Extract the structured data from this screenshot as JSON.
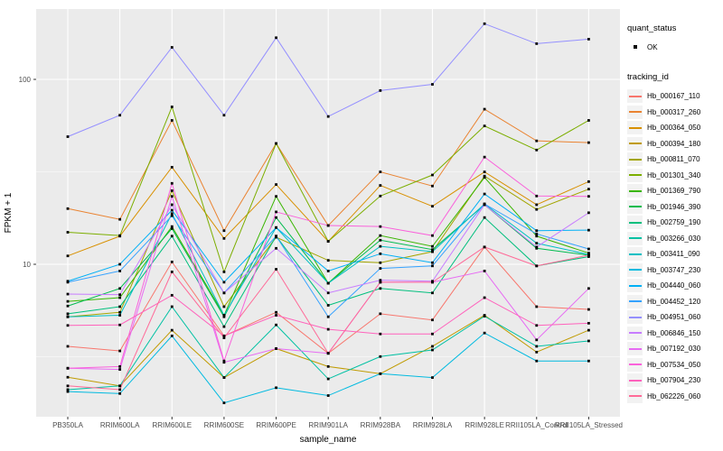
{
  "axes": {
    "y_label": "FPKM + 1",
    "x_label": "sample_name"
  },
  "legend": {
    "quant_title": "quant_status",
    "quant_ok_label": "OK",
    "tracking_title": "tracking_id"
  },
  "chart_data": {
    "type": "line",
    "title": "",
    "xlabel": "sample_name",
    "ylabel": "FPKM + 1",
    "y_scale": "log10",
    "ylim": [
      1.5,
      240
    ],
    "y_major_ticks": [
      100,
      10
    ],
    "y_minor_ticks": [
      31.62,
      3.162
    ],
    "grid": true,
    "legend_position": "right",
    "panel_bg": "#EBEBEB",
    "grid_color": "#FFFFFF",
    "point_color": "#000000",
    "quant_status": "OK",
    "categories": [
      "PB350LA",
      "RRIM600LA",
      "RRIM600LE",
      "RRIM600SE",
      "RRIM600PE",
      "RRIM901LA",
      "RRIM928BA",
      "RRIM928LA",
      "RRIM928LE",
      "RRII105LA_Control",
      "RRII105LA_Stressed"
    ],
    "series": [
      {
        "name": "Hb_000167_110",
        "color": "#F8766D",
        "values": [
          3.6,
          3.4,
          10.3,
          4.1,
          5.5,
          3.3,
          5.4,
          5.0,
          12.4,
          5.9,
          5.7
        ]
      },
      {
        "name": "Hb_000317_260",
        "color": "#EA8331",
        "values": [
          20,
          17.5,
          60,
          15.2,
          45,
          16.2,
          31.6,
          26.5,
          69,
          46.5,
          45.5
        ]
      },
      {
        "name": "Hb_000364_050",
        "color": "#D89000",
        "values": [
          11.1,
          14.2,
          33.5,
          13.8,
          27,
          13.3,
          26.7,
          20.6,
          31.6,
          21,
          28
        ]
      },
      {
        "name": "Hb_000394_180",
        "color": "#C09B00",
        "values": [
          2.45,
          2.2,
          4.4,
          2.44,
          3.5,
          2.8,
          2.56,
          3.6,
          5.3,
          3.35,
          4.4
        ]
      },
      {
        "name": "Hb_000811_070",
        "color": "#A3A500",
        "values": [
          5.2,
          5.5,
          25,
          5.9,
          14,
          10.5,
          10.2,
          11.7,
          30,
          19.8,
          25.5
        ]
      },
      {
        "name": "Hb_001301_340",
        "color": "#7CAE00",
        "values": [
          14.9,
          14.3,
          71,
          9.1,
          45,
          13.3,
          23.4,
          30.4,
          56,
          41.5,
          60
        ]
      },
      {
        "name": "Hb_001369_790",
        "color": "#39B600",
        "values": [
          6.3,
          6.6,
          16,
          5.3,
          23.3,
          7.9,
          14.3,
          12.5,
          29.5,
          14.2,
          11.5
        ]
      },
      {
        "name": "Hb_001946_390",
        "color": "#00BB4E",
        "values": [
          5.95,
          7.4,
          15.6,
          5.2,
          17.9,
          7.9,
          13.5,
          12.0,
          21,
          12.2,
          11.2
        ]
      },
      {
        "name": "Hb_002759_190",
        "color": "#00BF7D",
        "values": [
          5.4,
          5.9,
          14.2,
          4.6,
          14.2,
          6.0,
          7.4,
          7.0,
          17.9,
          9.8,
          11.0
        ]
      },
      {
        "name": "Hb_003266_030",
        "color": "#00C1A3",
        "values": [
          2.1,
          2.2,
          5.9,
          2.44,
          4.7,
          2.4,
          3.17,
          3.44,
          5.24,
          3.6,
          3.85
        ]
      },
      {
        "name": "Hb_003411_090",
        "color": "#00BFC4",
        "values": [
          5.2,
          5.3,
          18.8,
          5.3,
          15.8,
          7.9,
          12.5,
          11.7,
          21.2,
          13,
          11.3
        ]
      },
      {
        "name": "Hb_003747_230",
        "color": "#00BAE0",
        "values": [
          2.05,
          2.0,
          4.1,
          1.78,
          2.15,
          1.95,
          2.56,
          2.44,
          4.25,
          3.0,
          3.0
        ]
      },
      {
        "name": "Hb_004440_060",
        "color": "#00B0F6",
        "values": [
          8.1,
          10.0,
          19.6,
          8.0,
          15.8,
          9.2,
          11.4,
          10.2,
          24,
          15.2,
          15.3
        ]
      },
      {
        "name": "Hb_004452_120",
        "color": "#35A2FF",
        "values": [
          8.0,
          9.2,
          18.3,
          7.0,
          14.2,
          5.2,
          9.5,
          9.8,
          21.2,
          14.6,
          12.1
        ]
      },
      {
        "name": "Hb_004951_060",
        "color": "#9590FF",
        "values": [
          49,
          64,
          149,
          64,
          168,
          63,
          87,
          94,
          200,
          156,
          165
        ]
      },
      {
        "name": "Hb_006846_150",
        "color": "#C77CFF",
        "values": [
          6.9,
          6.85,
          21,
          7.0,
          12.2,
          7.0,
          8.2,
          8.1,
          21,
          12.4,
          19.0
        ]
      },
      {
        "name": "Hb_007192_030",
        "color": "#E76BF3",
        "values": [
          2.74,
          2.7,
          23.3,
          2.95,
          3.5,
          3.3,
          8.0,
          8.0,
          9.2,
          3.9,
          7.4
        ]
      },
      {
        "name": "Hb_007534_050",
        "color": "#FA62DB",
        "values": [
          2.74,
          2.8,
          27.4,
          3.0,
          19.2,
          16.2,
          16.0,
          14.3,
          38,
          23.4,
          23.3
        ]
      },
      {
        "name": "Hb_007904_230",
        "color": "#FF62BC",
        "values": [
          4.67,
          4.7,
          6.8,
          4.1,
          5.3,
          4.45,
          4.2,
          4.2,
          6.6,
          4.67,
          4.8
        ]
      },
      {
        "name": "Hb_062226_060",
        "color": "#FF6A98",
        "values": [
          2.2,
          2.1,
          9.1,
          4.0,
          9.4,
          3.3,
          8.0,
          8.0,
          12.4,
          9.8,
          11.2
        ]
      }
    ]
  }
}
